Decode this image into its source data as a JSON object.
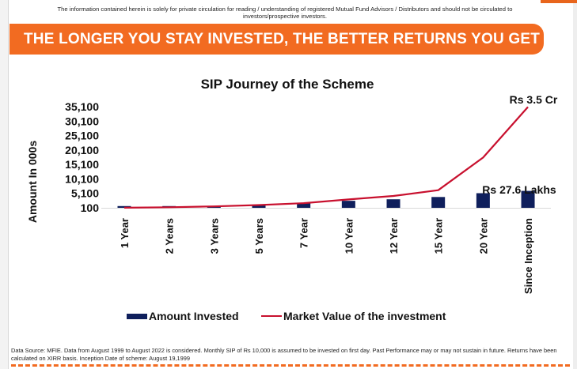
{
  "disclaimer": "The information contained herein is solely for private circulation for reading / understanding of registered Mutual Fund Advisors / Distributors and should not be circulated to investors/prospective investors.",
  "banner": "THE LONGER YOU STAY INVESTED, THE BETTER RETURNS YOU GET",
  "colors": {
    "accent": "#f26b21",
    "invested": "#0f1f5c",
    "market": "#c8102e"
  },
  "chart_data": {
    "type": "bar+line",
    "title": "SIP Journey of the Scheme",
    "ylabel": "Amount In 000s",
    "xlabel": "",
    "yticks": [
      "35,100",
      "30,100",
      "25,100",
      "20,100",
      "15,100",
      "10,100",
      "5,100",
      "100"
    ],
    "ylim": [
      100,
      35100
    ],
    "categories": [
      "1 Year",
      "2 Years",
      "3 Years",
      "5 Years",
      "7 Year",
      "10 Year",
      "12 Year",
      "15 Year",
      "20 Year",
      "Since Inception"
    ],
    "series": [
      {
        "name": "Amount Invested",
        "kind": "bar",
        "values": [
          120,
          240,
          360,
          600,
          840,
          1200,
          1440,
          1800,
          2400,
          2760
        ]
      },
      {
        "name": "Market Value of the investment",
        "kind": "line",
        "values": [
          125,
          300,
          600,
          1050,
          1700,
          3000,
          4200,
          6200,
          17500,
          35000
        ]
      }
    ],
    "annotations": {
      "top": "Rs 3.5 Cr",
      "invested": "Rs 27.6 Lakhs"
    },
    "grid": false,
    "legend_position": "bottom"
  },
  "footnote": "Data Source: MFIE. Data from August 1999 to August 2022 is considered. Monthly SIP of Rs 10,000 is assumed to be invested on first day. Past Performance may or may not sustain in future. Returns have been calculated on XIRR basis. Inception Date of scheme: August 19,1999"
}
